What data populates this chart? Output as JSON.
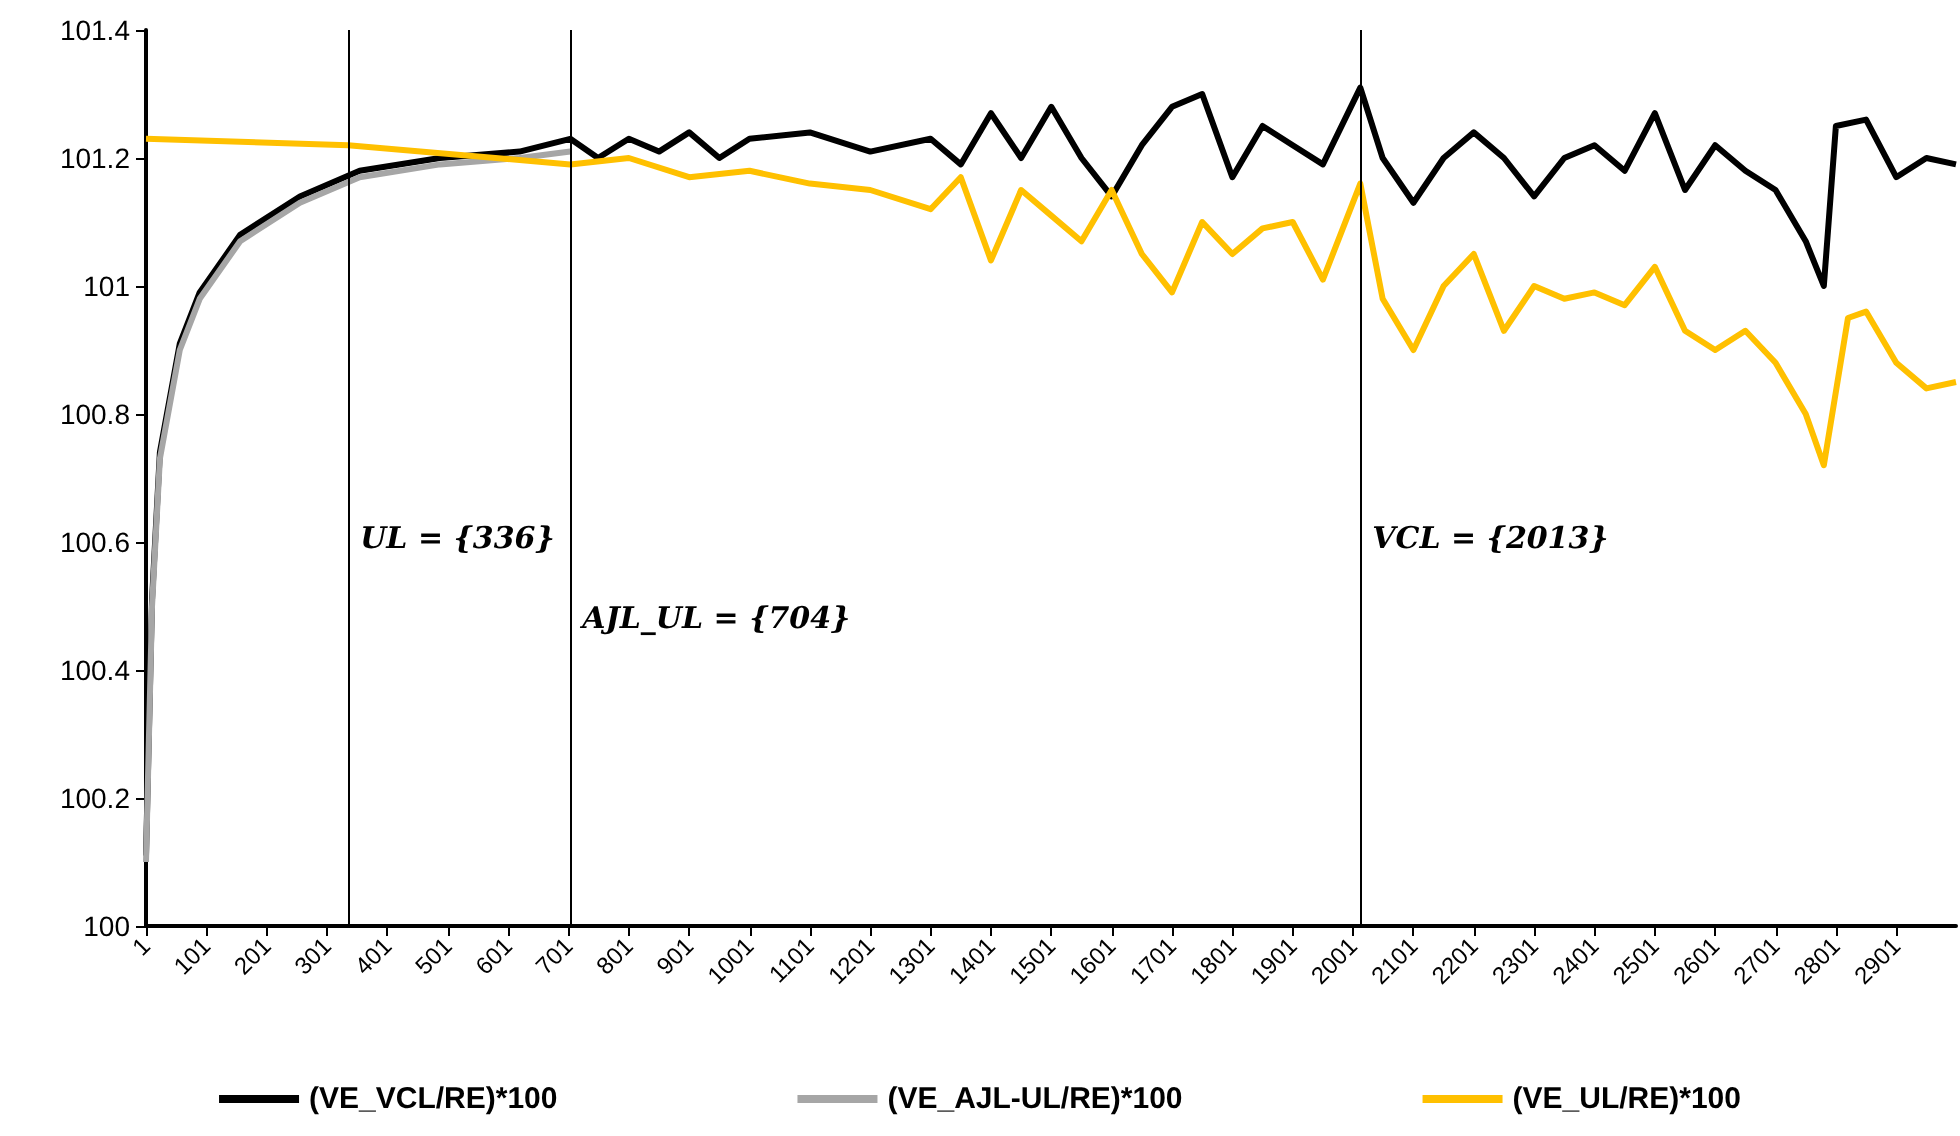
{
  "chart_data": {
    "type": "line",
    "xlim": [
      1,
      3000
    ],
    "xticks": [
      1,
      101,
      201,
      301,
      401,
      501,
      601,
      701,
      801,
      901,
      1001,
      1101,
      1201,
      1301,
      1401,
      1501,
      1601,
      1701,
      1801,
      1901,
      2001,
      2101,
      2201,
      2301,
      2401,
      2501,
      2601,
      2701,
      2801,
      2901
    ],
    "ylim": [
      100,
      101.4
    ],
    "yticks": [
      100,
      100.2,
      100.4,
      100.6,
      100.8,
      101,
      101.2,
      101.4
    ],
    "grid": false,
    "legend": "bottom",
    "marker": "none",
    "line_style": "solid",
    "series": [
      {
        "name": "(VE_VCL/RE)*100",
        "color": "#000000",
        "x": [
          1,
          11,
          24,
          57,
          90,
          157,
          256,
          355,
          488,
          620,
          704,
          750,
          801,
          851,
          901,
          951,
          1001,
          1101,
          1201,
          1301,
          1351,
          1401,
          1451,
          1501,
          1551,
          1601,
          1651,
          1701,
          1751,
          1801,
          1851,
          1901,
          1951,
          2013,
          2050,
          2101,
          2151,
          2201,
          2251,
          2301,
          2351,
          2401,
          2451,
          2501,
          2551,
          2601,
          2651,
          2701,
          2751,
          2781,
          2801,
          2851,
          2901,
          2951,
          3000
        ],
        "values": [
          100.11,
          100.51,
          100.74,
          100.91,
          100.99,
          101.08,
          101.14,
          101.18,
          101.2,
          101.21,
          101.23,
          101.2,
          101.23,
          101.21,
          101.24,
          101.2,
          101.23,
          101.24,
          101.21,
          101.23,
          101.19,
          101.27,
          101.2,
          101.28,
          101.2,
          101.14,
          101.22,
          101.28,
          101.3,
          101.17,
          101.25,
          101.22,
          101.19,
          101.31,
          101.2,
          101.13,
          101.2,
          101.24,
          101.2,
          101.14,
          101.2,
          101.22,
          101.18,
          101.27,
          101.15,
          101.22,
          101.18,
          101.15,
          101.07,
          101.0,
          101.25,
          101.26,
          101.17,
          101.2,
          101.19
        ]
      },
      {
        "name": "(VE_AJL-UL/RE)*100",
        "color": "#a6a6a6",
        "x": [
          1,
          11,
          24,
          57,
          90,
          157,
          256,
          355,
          488,
          620,
          704
        ],
        "values": [
          100.1,
          100.5,
          100.73,
          100.9,
          100.98,
          101.07,
          101.13,
          101.17,
          101.19,
          101.2,
          101.21
        ]
      },
      {
        "name": "(VE_UL/RE)*100",
        "color": "#ffc000",
        "x": [
          1,
          336,
          704,
          801,
          901,
          1001,
          1101,
          1201,
          1301,
          1351,
          1401,
          1451,
          1501,
          1551,
          1601,
          1651,
          1701,
          1751,
          1801,
          1851,
          1901,
          1951,
          2013,
          2050,
          2101,
          2151,
          2201,
          2251,
          2301,
          2351,
          2401,
          2451,
          2501,
          2551,
          2601,
          2651,
          2701,
          2751,
          2781,
          2821,
          2851,
          2901,
          2951,
          3000
        ],
        "values": [
          101.23,
          101.22,
          101.19,
          101.2,
          101.17,
          101.18,
          101.16,
          101.15,
          101.12,
          101.17,
          101.04,
          101.15,
          101.11,
          101.07,
          101.15,
          101.05,
          100.99,
          101.1,
          101.05,
          101.09,
          101.1,
          101.01,
          101.16,
          100.98,
          100.9,
          101.0,
          101.05,
          100.93,
          101.0,
          100.98,
          100.99,
          100.97,
          101.03,
          100.93,
          100.9,
          100.93,
          100.88,
          100.8,
          100.72,
          100.95,
          100.96,
          100.88,
          100.84,
          100.85
        ]
      }
    ],
    "ref_lines": [
      {
        "axis": "x",
        "value": 336,
        "label": "UL = {336}"
      },
      {
        "axis": "x",
        "value": 704,
        "label": "AJL_UL = {704}"
      },
      {
        "axis": "x",
        "value": 2013,
        "label": "VCL = {2013}"
      }
    ]
  }
}
